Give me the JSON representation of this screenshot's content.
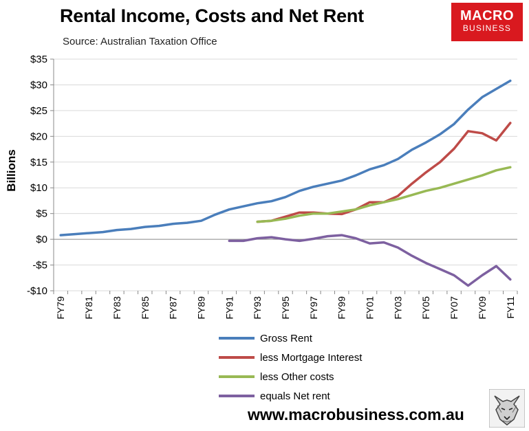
{
  "header": {
    "title": "Rental Income, Costs and Net Rent",
    "source": "Source: Australian Taxation Office"
  },
  "logo": {
    "line1": "MACRO",
    "line2": "BUSINESS",
    "color": "#d9191f",
    "icon": "macrobusiness-wolf-logo"
  },
  "footer": {
    "website": "www.macrobusiness.com.au"
  },
  "colors": {
    "gross_rent": "#4a7ebb",
    "mortgage_interest": "#be4b48",
    "other_costs": "#98b954",
    "net_rent": "#7d60a0",
    "gridline": "#d9d9d9"
  },
  "chart_data": {
    "type": "line",
    "title": "Rental Income, Costs and Net Rent",
    "ylabel": "Billions",
    "xlabel": "",
    "ylim": [
      -10,
      35
    ],
    "yticks": [
      35,
      30,
      25,
      20,
      15,
      10,
      5,
      0,
      -5,
      -10
    ],
    "ytick_labels": [
      "$35",
      "$30",
      "$25",
      "$20",
      "$15",
      "$10",
      "$5",
      "$0",
      "-$5",
      "-$10"
    ],
    "grid": "horizontal",
    "legend_position": "bottom",
    "x": [
      "FY79",
      "FY80",
      "FY81",
      "FY82",
      "FY83",
      "FY84",
      "FY85",
      "FY86",
      "FY87",
      "FY88",
      "FY89",
      "FY90",
      "FY91",
      "FY92",
      "FY93",
      "FY94",
      "FY95",
      "FY96",
      "FY97",
      "FY98",
      "FY99",
      "FY00",
      "FY01",
      "FY02",
      "FY03",
      "FY04",
      "FY05",
      "FY06",
      "FY07",
      "FY08",
      "FY09",
      "FY10",
      "FY11"
    ],
    "xtick_labels": [
      "FY79",
      "",
      "FY81",
      "",
      "FY83",
      "",
      "FY85",
      "",
      "FY87",
      "",
      "FY89",
      "",
      "FY91",
      "",
      "FY93",
      "",
      "FY95",
      "",
      "FY97",
      "",
      "FY99",
      "",
      "FY01",
      "",
      "FY03",
      "",
      "FY05",
      "",
      "FY07",
      "",
      "FY09",
      "",
      "FY11"
    ],
    "series": [
      {
        "name": "Gross Rent",
        "values": [
          0.8,
          1.0,
          1.2,
          1.4,
          1.8,
          2.0,
          2.4,
          2.6,
          3.0,
          3.2,
          3.6,
          4.8,
          5.8,
          6.4,
          7.0,
          7.4,
          8.2,
          9.4,
          10.2,
          10.8,
          11.4,
          12.4,
          13.6,
          14.4,
          15.6,
          17.4,
          18.8,
          20.4,
          22.4,
          25.2,
          27.6,
          29.2,
          30.8
        ]
      },
      {
        "name": "less Mortgage Interest",
        "values": [
          null,
          null,
          null,
          null,
          null,
          null,
          null,
          null,
          null,
          null,
          null,
          null,
          null,
          null,
          3.4,
          3.6,
          4.4,
          5.2,
          5.2,
          5.0,
          4.9,
          5.8,
          7.2,
          7.2,
          8.4,
          10.8,
          13.0,
          15.0,
          17.6,
          21.0,
          20.6,
          19.2,
          22.6
        ]
      },
      {
        "name": "less Other costs",
        "values": [
          null,
          null,
          null,
          null,
          null,
          null,
          null,
          null,
          null,
          null,
          null,
          null,
          null,
          null,
          3.4,
          3.6,
          4.0,
          4.6,
          5.0,
          5.0,
          5.4,
          5.8,
          6.6,
          7.2,
          7.8,
          8.6,
          9.4,
          10.0,
          10.8,
          11.6,
          12.4,
          13.4,
          14.0
        ]
      },
      {
        "name": "equals Net rent",
        "values": [
          null,
          null,
          null,
          null,
          null,
          null,
          null,
          null,
          null,
          null,
          null,
          null,
          -0.3,
          -0.3,
          0.2,
          0.4,
          0.0,
          -0.3,
          0.1,
          0.6,
          0.8,
          0.2,
          -0.8,
          -0.6,
          -1.6,
          -3.2,
          -4.6,
          -5.8,
          -7.0,
          -9.0,
          -7.0,
          -5.2,
          -7.8
        ]
      }
    ]
  }
}
